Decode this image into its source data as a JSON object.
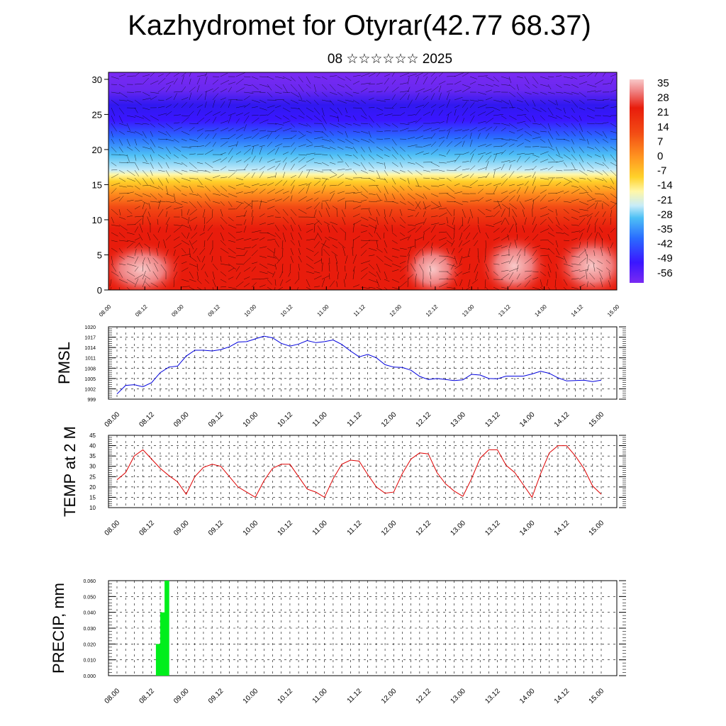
{
  "title": "Kazhydromet for Otyrar(42.77 68.37)",
  "subtitle": "08 ☆☆☆☆☆☆ 2025",
  "chart_data": [
    {
      "type": "heatmap",
      "panel": "cross-section",
      "y_ticks": [
        "0",
        "5",
        "10",
        "15",
        "20",
        "25",
        "30"
      ],
      "ylim": [
        0,
        31
      ],
      "x_ticks": [
        "08.00",
        "08.12",
        "09.00",
        "09.12",
        "10.00",
        "10.12",
        "11.00",
        "11.12",
        "12.00",
        "12.12",
        "13.00",
        "13.12",
        "14.00",
        "14.12",
        "15.00"
      ],
      "colorbar_labels": [
        "35",
        "28",
        "21",
        "14",
        "7",
        "0",
        "-7",
        "-14",
        "-21",
        "-28",
        "-35",
        "-42",
        "-49",
        "-56"
      ],
      "colormap_stops": [
        "#7a2af2",
        "#3a16ff",
        "#2a6cff",
        "#4ec0f5",
        "#c8ecf8",
        "#fff7a8",
        "#ffd22a",
        "#ff9420",
        "#f24a14",
        "#e81c0c",
        "#ef8080",
        "#f8c8c8"
      ],
      "overlay": "wind vectors"
    },
    {
      "type": "line",
      "ylabel": "PMSL",
      "y_ticks": [
        "999",
        "1002",
        "1005",
        "1008",
        "1011",
        "1014",
        "1017",
        "1020"
      ],
      "ylim": [
        999,
        1020
      ],
      "x_ticks": [
        "08.00",
        "08.12",
        "09.00",
        "09.12",
        "10.00",
        "10.12",
        "11.00",
        "11.12",
        "12.00",
        "12.12",
        "13.00",
        "13.12",
        "14.00",
        "14.12",
        "15.00"
      ],
      "line_color": "#0000dd",
      "values": [
        1000.5,
        1003.0,
        1003.2,
        1002.6,
        1003.8,
        1006.7,
        1008.3,
        1008.6,
        1011.5,
        1013.2,
        1013.2,
        1013.0,
        1013.4,
        1014.2,
        1015.6,
        1015.7,
        1016.5,
        1017.3,
        1016.8,
        1015.2,
        1014.4,
        1015.0,
        1016.0,
        1015.4,
        1015.7,
        1016.2,
        1014.9,
        1013.0,
        1011.3,
        1012.0,
        1011.0,
        1009.0,
        1008.3,
        1008.2,
        1007.4,
        1005.6,
        1004.7,
        1005.0,
        1004.7,
        1004.4,
        1004.6,
        1006.2,
        1006.0,
        1005.0,
        1004.9,
        1005.7,
        1005.7,
        1005.7,
        1006.3,
        1007.1,
        1006.5,
        1005.2,
        1004.3,
        1004.4,
        1004.5,
        1004.1,
        1004.5
      ]
    },
    {
      "type": "line",
      "ylabel": "TEMP at 2 M",
      "y_ticks": [
        "10",
        "15",
        "20",
        "25",
        "30",
        "35",
        "40",
        "45"
      ],
      "ylim": [
        10,
        45
      ],
      "x_ticks": [
        "08.00",
        "08.12",
        "09.00",
        "09.12",
        "10.00",
        "10.12",
        "11.00",
        "11.12",
        "12.00",
        "12.12",
        "13.00",
        "13.12",
        "14.00",
        "14.12",
        "15.00"
      ],
      "line_color": "#dd0000",
      "values": [
        23.5,
        27,
        35,
        38,
        33.5,
        29,
        25.5,
        22.5,
        16.5,
        25,
        29.5,
        31,
        30,
        25,
        20,
        17.5,
        15,
        23,
        29,
        31,
        31,
        25,
        19,
        17.5,
        15,
        24,
        31,
        33,
        32.5,
        26,
        20,
        17,
        17.5,
        26.5,
        33.5,
        36.5,
        36,
        27,
        21.5,
        18,
        15.5,
        24,
        34,
        38,
        38,
        30.5,
        27,
        21,
        15,
        26.5,
        36.5,
        40,
        40,
        35,
        29,
        20.5,
        16.5
      ]
    },
    {
      "type": "bar",
      "ylabel": "PRECIP, mm",
      "y_ticks": [
        "0.000",
        "0.010",
        "0.020",
        "0.030",
        "0.040",
        "0.050",
        "0.060"
      ],
      "ylim": [
        0,
        0.06
      ],
      "x_ticks": [
        "08.00",
        "08.12",
        "09.00",
        "09.12",
        "10.00",
        "10.12",
        "11.00",
        "11.12",
        "12.00",
        "12.12",
        "13.00",
        "13.12",
        "14.00",
        "14.12",
        "15.00"
      ],
      "bar_color": "#00ee1c",
      "bars": [
        {
          "from": "08.09",
          "to": "08.12",
          "value": 0.02
        },
        {
          "from": "08.12",
          "to": "08.15",
          "value": 0.04
        },
        {
          "from": "08.15",
          "to": "08.18",
          "value": 0.06
        }
      ],
      "bar_index": [
        9,
        10,
        11
      ]
    }
  ]
}
